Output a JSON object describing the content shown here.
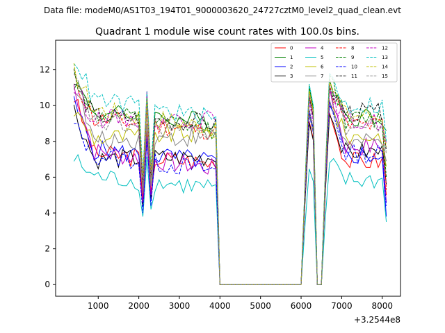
{
  "chart_data": {
    "type": "line",
    "suptitle": "Data file: modeM0/AS1T03_194T01_9000003620_24727cztM0_level2_quad_clean.evt",
    "title": "Quadrant 1 module wise count rates with 100.0s bins.",
    "xlabel": "",
    "ylabel": "",
    "x_offset_label": "+3.2544e8",
    "xlim": [
      -50,
      8450
    ],
    "ylim": [
      -0.65,
      13.65
    ],
    "xticks": [
      1000,
      2000,
      3000,
      4000,
      5000,
      6000,
      7000,
      8000
    ],
    "yticks": [
      0,
      2,
      4,
      6,
      8,
      10,
      12
    ],
    "legend_position": "top-right",
    "segments": [
      {
        "x": [
          400,
          500,
          600,
          700,
          800,
          900,
          1000,
          1100,
          1200,
          1300,
          1400,
          1500,
          1600,
          1700,
          1800,
          1900,
          2000,
          2100,
          2200,
          2300,
          2400,
          2500,
          2600,
          2700,
          2800,
          2900,
          3000,
          3100,
          3200,
          3300,
          3400,
          3500,
          3600,
          3700,
          3800,
          3900,
          4000,
          4100,
          4200,
          4300,
          4400,
          4500,
          4600,
          4700,
          4800,
          4900,
          5000,
          5100,
          5200,
          5300,
          5400,
          5500,
          5600,
          5700,
          5800,
          5900,
          6000,
          6100,
          6200,
          6300,
          6400,
          6500,
          6600,
          6700
        ]
      },
      {
        "x": [
          6700,
          6800,
          6900,
          7000,
          7100,
          7200,
          7300,
          7400,
          7500,
          7600,
          7700,
          7800,
          7900,
          8000,
          8100
        ]
      }
    ],
    "series": [
      {
        "name": "0",
        "color": "#ff0000",
        "dash": "solid",
        "start": 10.5,
        "mid": 7.3,
        "end": 6.8,
        "seg2start": 9.6,
        "seg2mid": 6.9,
        "seg2end": 5.0,
        "dip": 4.8
      },
      {
        "name": "1",
        "color": "#008000",
        "dash": "solid",
        "start": 11.4,
        "mid": 9.6,
        "end": 9.1,
        "seg2start": 11.5,
        "seg2mid": 9.4,
        "seg2end": 8.6,
        "dip": 5.7
      },
      {
        "name": "2",
        "color": "#0000ff",
        "dash": "solid",
        "start": 10.1,
        "mid": 7.5,
        "end": 6.9,
        "seg2start": 10.0,
        "seg2mid": 7.2,
        "seg2end": 3.8,
        "dip": 4.3
      },
      {
        "name": "3",
        "color": "#000000",
        "dash": "solid",
        "start": 9.8,
        "mid": 7.0,
        "end": 7.1,
        "seg2start": 9.5,
        "seg2mid": 7.4,
        "seg2end": 5.6,
        "dip": 4.4
      },
      {
        "name": "4",
        "color": "#c000c0",
        "dash": "solid",
        "start": 11.1,
        "mid": 7.4,
        "end": 6.5,
        "seg2start": 11.0,
        "seg2mid": 7.7,
        "seg2end": 4.6,
        "dip": 4.6
      },
      {
        "name": "5",
        "color": "#00bfbf",
        "dash": "solid",
        "start": 7.0,
        "mid": 6.0,
        "end": 5.4,
        "seg2start": 6.8,
        "seg2mid": 5.8,
        "seg2end": 3.5,
        "dip": 3.8
      },
      {
        "name": "6",
        "color": "#bfbf00",
        "dash": "solid",
        "start": 9.7,
        "mid": 8.2,
        "end": 8.5,
        "seg2start": 10.1,
        "seg2mid": 8.3,
        "seg2end": 6.6,
        "dip": 5.4
      },
      {
        "name": "7",
        "color": "#808080",
        "dash": "solid",
        "start": 11.2,
        "mid": 8.0,
        "end": 8.3,
        "seg2start": 10.3,
        "seg2mid": 7.9,
        "seg2end": 6.9,
        "dip": 5.1
      },
      {
        "name": "8",
        "color": "#ff0000",
        "dash": "dashed",
        "start": 11.6,
        "mid": 9.2,
        "end": 8.6,
        "seg2start": 11.2,
        "seg2mid": 8.9,
        "seg2end": 5.3,
        "dip": 5.6
      },
      {
        "name": "9",
        "color": "#008000",
        "dash": "dashed",
        "start": 11.8,
        "mid": 9.5,
        "end": 8.7,
        "seg2start": 11.7,
        "seg2mid": 9.2,
        "seg2end": 6.0,
        "dip": 5.8
      },
      {
        "name": "10",
        "color": "#0000ff",
        "dash": "dashed",
        "start": 8.9,
        "mid": 7.2,
        "end": 6.4,
        "seg2start": 10.2,
        "seg2mid": 7.3,
        "seg2end": 4.4,
        "dip": 4.0
      },
      {
        "name": "11",
        "color": "#000000",
        "dash": "dashed",
        "start": 11.3,
        "mid": 9.4,
        "end": 9.0,
        "seg2start": 11.0,
        "seg2mid": 9.6,
        "seg2end": 7.5,
        "dip": 5.7
      },
      {
        "name": "12",
        "color": "#c000c0",
        "dash": "dashed",
        "start": 11.0,
        "mid": 9.3,
        "end": 9.2,
        "seg2start": 10.7,
        "seg2mid": 9.1,
        "seg2end": 7.9,
        "dip": 5.9
      },
      {
        "name": "13",
        "color": "#00bfbf",
        "dash": "dashed",
        "start": 12.8,
        "mid": 10.3,
        "end": 9.3,
        "seg2start": 11.8,
        "seg2mid": 10.0,
        "seg2end": 8.0,
        "dip": 6.2
      },
      {
        "name": "14",
        "color": "#bfbf00",
        "dash": "dashed",
        "start": 11.9,
        "mid": 9.8,
        "end": 8.8,
        "seg2start": 11.4,
        "seg2mid": 9.5,
        "seg2end": 7.7,
        "dip": 6.0
      },
      {
        "name": "15",
        "color": "#808080",
        "dash": "dashed",
        "start": 11.5,
        "mid": 9.0,
        "end": 8.5,
        "seg2start": 11.1,
        "seg2mid": 8.8,
        "seg2end": 7.3,
        "dip": 5.5
      }
    ]
  }
}
